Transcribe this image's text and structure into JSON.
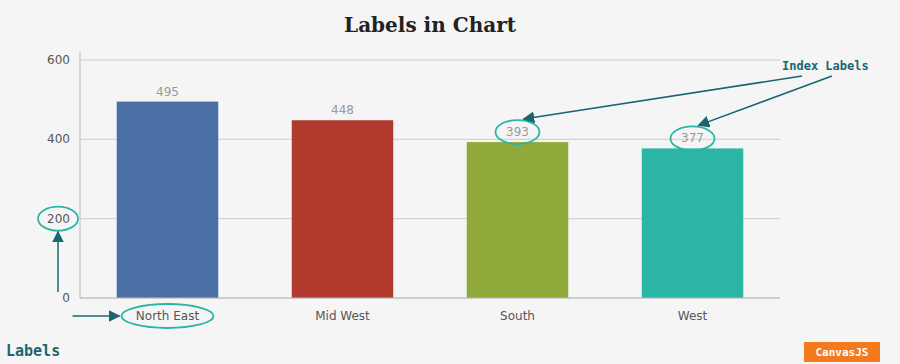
{
  "chart_data": {
    "type": "bar",
    "title": "Labels in Chart",
    "categories": [
      "North East",
      "Mid West",
      "South",
      "West"
    ],
    "values": [
      495,
      448,
      393,
      377
    ],
    "colors": [
      "#4a6fa5",
      "#b03a2e",
      "#8faa3a",
      "#2ab5a5"
    ],
    "ylim": [
      0,
      620
    ],
    "yticks": [
      0,
      200,
      400,
      600
    ],
    "grid": true,
    "data_labels": true,
    "annotations": [
      "Labels",
      "Index Labels",
      "CanvasJS"
    ]
  }
}
